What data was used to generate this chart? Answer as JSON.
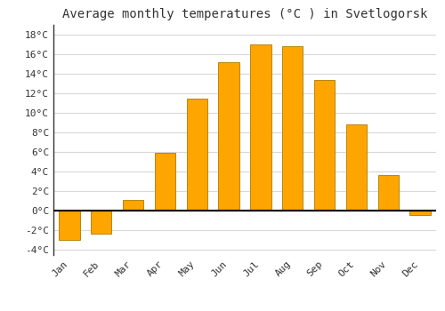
{
  "title": "Average monthly temperatures (°C ) in Svetlogorsk",
  "months": [
    "Jan",
    "Feb",
    "Mar",
    "Apr",
    "May",
    "Jun",
    "Jul",
    "Aug",
    "Sep",
    "Oct",
    "Nov",
    "Dec"
  ],
  "values": [
    -3.0,
    -2.3,
    1.1,
    5.9,
    11.5,
    15.2,
    17.0,
    16.8,
    13.4,
    8.8,
    3.7,
    -0.4
  ],
  "bar_color": "#FFA500",
  "bar_edge_color": "#B8860B",
  "background_color": "#FFFFFF",
  "plot_bg_color": "#FFFFFF",
  "ylim": [
    -4.5,
    19
  ],
  "yticks": [
    -4,
    -2,
    0,
    2,
    4,
    6,
    8,
    10,
    12,
    14,
    16,
    18
  ],
  "grid_color": "#D8D8D8",
  "title_fontsize": 10,
  "tick_fontsize": 8,
  "zero_line_color": "#000000",
  "bar_width": 0.65
}
